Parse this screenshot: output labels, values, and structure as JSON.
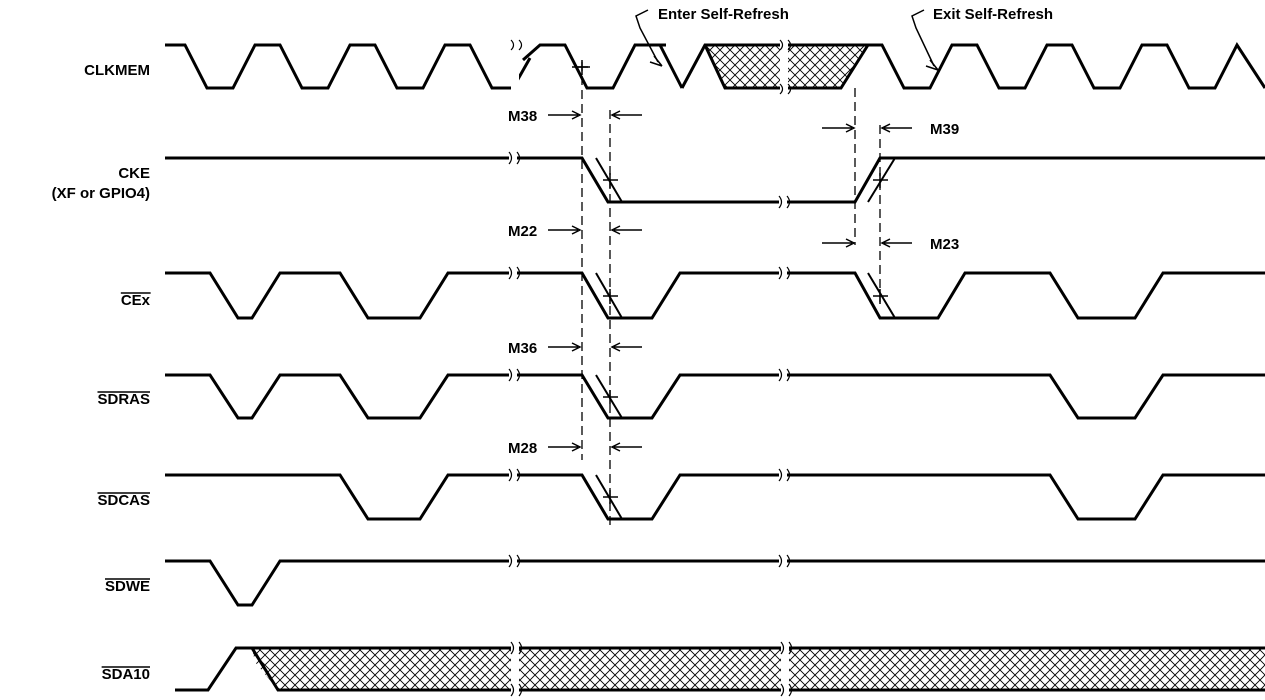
{
  "title": "",
  "signals": [
    {
      "id": "clkmem",
      "label": "CLKMEM",
      "overline": false
    },
    {
      "id": "cke",
      "label": "CKE",
      "sublabel": "(XF or GPIO4)",
      "overline": false
    },
    {
      "id": "cex",
      "label": "CEx",
      "overline": true
    },
    {
      "id": "sdras",
      "label": "SDRAS",
      "overline": true
    },
    {
      "id": "sdcas",
      "label": "SDCAS",
      "overline": true
    },
    {
      "id": "sdwe",
      "label": "SDWE",
      "overline": true
    },
    {
      "id": "sda10",
      "label": "SDA10",
      "overline": true
    }
  ],
  "annotations": {
    "enter": "Enter Self-Refresh",
    "exit": "Exit Self-Refresh"
  },
  "timing_params": {
    "m38": "M38",
    "m39": "M39",
    "m22": "M22",
    "m23": "M23",
    "m36": "M36",
    "m28": "M28"
  }
}
